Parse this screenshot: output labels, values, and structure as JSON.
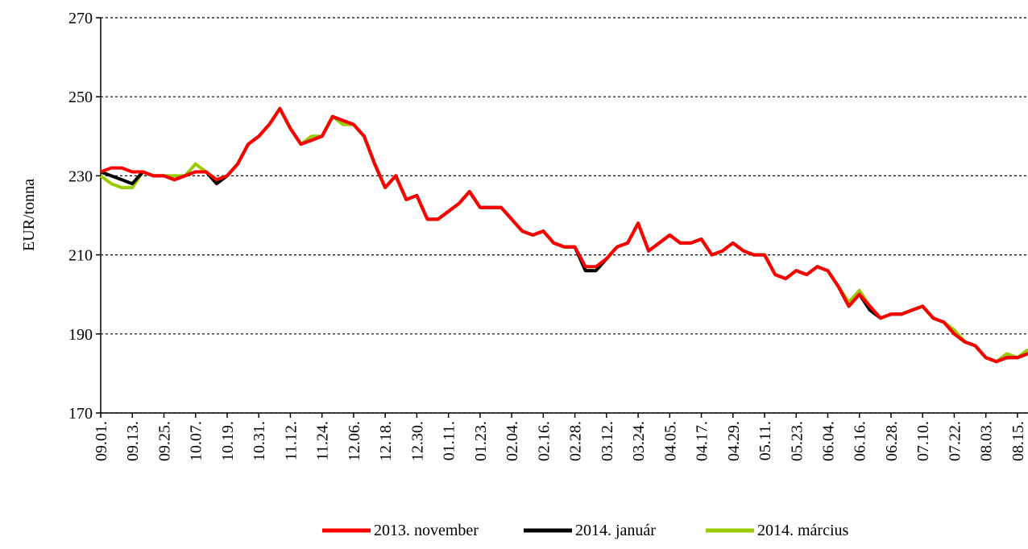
{
  "chart_data": {
    "type": "line",
    "y_label": "EUR/tonna",
    "categories": [
      "09.01.",
      null,
      null,
      "09.13.",
      null,
      null,
      "09.25.",
      null,
      null,
      "10.07.",
      null,
      null,
      "10.19.",
      null,
      null,
      "10.31.",
      null,
      null,
      "11.12.",
      null,
      null,
      "11.24.",
      null,
      null,
      "12.06.",
      null,
      null,
      "12.18.",
      null,
      null,
      "12.30.",
      null,
      null,
      "01.11.",
      null,
      null,
      "01.23.",
      null,
      null,
      "02.04.",
      null,
      null,
      "02.16.",
      null,
      null,
      "02.28.",
      null,
      null,
      "03.12.",
      null,
      null,
      "03.24.",
      null,
      null,
      "04.05.",
      null,
      null,
      "04.17.",
      null,
      null,
      "04.29.",
      null,
      null,
      "05.11.",
      null,
      null,
      "05.23.",
      null,
      null,
      "06.04.",
      null,
      null,
      "06.16.",
      null,
      null,
      "06.28.",
      null,
      null,
      "07.10.",
      null,
      null,
      "07.22.",
      null,
      null,
      "08.03.",
      null,
      null,
      "08.15.",
      null
    ],
    "series": [
      {
        "name": "2013. november",
        "color": "#ff0000",
        "values": [
          231,
          232,
          232,
          231,
          231,
          230,
          230,
          229,
          230,
          231,
          231,
          229,
          230,
          233,
          238,
          240,
          243,
          247,
          242,
          238,
          239,
          240,
          245,
          244,
          243,
          240,
          233,
          227,
          230,
          224,
          225,
          219,
          219,
          221,
          223,
          226,
          222,
          222,
          222,
          219,
          216,
          215,
          216,
          213,
          212,
          212,
          207,
          207,
          209,
          212,
          213,
          218,
          211,
          213,
          215,
          213,
          213,
          214,
          210,
          211,
          213,
          211,
          210,
          210,
          205,
          204,
          206,
          205,
          207,
          206,
          202,
          197,
          200,
          197,
          194,
          195,
          195,
          196,
          197,
          194,
          193,
          190,
          188,
          187,
          184,
          183,
          184,
          184,
          185
        ]
      },
      {
        "name": "2014. január",
        "color": "#000000",
        "values": [
          231,
          230,
          229,
          228,
          231,
          230,
          230,
          229,
          230,
          231,
          231,
          228,
          230,
          233,
          238,
          240,
          243,
          247,
          242,
          238,
          239,
          240,
          245,
          244,
          243,
          240,
          233,
          227,
          230,
          224,
          225,
          219,
          219,
          221,
          223,
          226,
          222,
          222,
          222,
          219,
          216,
          215,
          216,
          213,
          212,
          212,
          206,
          206,
          209,
          212,
          213,
          218,
          211,
          213,
          215,
          213,
          213,
          214,
          210,
          211,
          213,
          211,
          210,
          210,
          205,
          204,
          206,
          205,
          207,
          206,
          202,
          197,
          200,
          196,
          194,
          195,
          195,
          196,
          197,
          194,
          193,
          190,
          188,
          187,
          184,
          183,
          184,
          184,
          185
        ]
      },
      {
        "name": "2014. március",
        "color": "#99cc00",
        "values": [
          230,
          228,
          227,
          227,
          231,
          230,
          230,
          230,
          230,
          233,
          231,
          229,
          230,
          233,
          238,
          240,
          243,
          247,
          242,
          238,
          240,
          240,
          245,
          243,
          243,
          240,
          233,
          227,
          230,
          224,
          225,
          219,
          219,
          221,
          223,
          226,
          222,
          222,
          222,
          219,
          216,
          215,
          216,
          213,
          212,
          212,
          206,
          206,
          209,
          212,
          213,
          218,
          211,
          213,
          215,
          213,
          213,
          214,
          210,
          211,
          213,
          211,
          210,
          210,
          205,
          204,
          206,
          205,
          207,
          206,
          202,
          198,
          201,
          197,
          194,
          195,
          195,
          196,
          197,
          194,
          193,
          191,
          188,
          187,
          184,
          183,
          185,
          184,
          186
        ]
      }
    ],
    "ylim": [
      170,
      270
    ],
    "yticks": [
      170,
      190,
      210,
      230,
      250,
      270
    ],
    "grid": true
  }
}
